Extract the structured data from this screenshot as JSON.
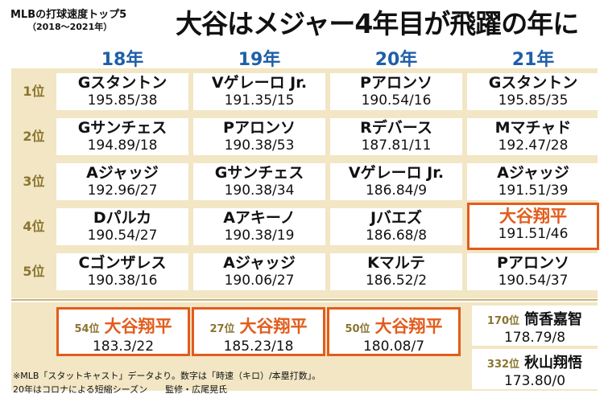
{
  "header": {
    "subtitle": "MLBの打球速度トップ5",
    "years": "（2018〜2021年）",
    "headline": "大谷はメジャー4年目が飛躍の年に"
  },
  "columns": [
    "18年",
    "19年",
    "20年",
    "21年"
  ],
  "rows": [
    {
      "rank": "1位",
      "cells": [
        {
          "name": "Gスタントン",
          "stat": "195.85/38"
        },
        {
          "name": "Vゲレーロ Jr.",
          "stat": "191.35/15"
        },
        {
          "name": "Pアロンソ",
          "stat": "190.54/16"
        },
        {
          "name": "Gスタントン",
          "stat": "195.85/35"
        }
      ]
    },
    {
      "rank": "2位",
      "cells": [
        {
          "name": "Gサンチェス",
          "stat": "194.89/18"
        },
        {
          "name": "Pアロンソ",
          "stat": "190.38/53"
        },
        {
          "name": "Rデバース",
          "stat": "187.81/11"
        },
        {
          "name": "Mマチャド",
          "stat": "192.47/28"
        }
      ]
    },
    {
      "rank": "3位",
      "cells": [
        {
          "name": "Aジャッジ",
          "stat": "192.96/27"
        },
        {
          "name": "Gサンチェス",
          "stat": "190.38/34"
        },
        {
          "name": "Vゲレーロ Jr.",
          "stat": "186.84/9"
        },
        {
          "name": "Aジャッジ",
          "stat": "191.51/39"
        }
      ]
    },
    {
      "rank": "4位",
      "cells": [
        {
          "name": "Dパルカ",
          "stat": "190.54/27"
        },
        {
          "name": "Aアキーノ",
          "stat": "190.38/19"
        },
        {
          "name": "Jバエズ",
          "stat": "186.68/8"
        },
        {
          "name": "大谷翔平",
          "stat": "191.51/46"
        }
      ]
    },
    {
      "rank": "5位",
      "cells": [
        {
          "name": "Cゴンザレス",
          "stat": "190.38/16"
        },
        {
          "name": "Aジャッジ",
          "stat": "190.06/27"
        },
        {
          "name": "Kマルテ",
          "stat": "186.52/2"
        },
        {
          "name": "Pアロンソ",
          "stat": "190.54/37"
        }
      ]
    }
  ],
  "ohtani_rows": [
    {
      "rank": "54位",
      "name": "大谷翔平",
      "stat": "183.3/22"
    },
    {
      "rank": "27位",
      "name": "大谷翔平",
      "stat": "185.23/18"
    },
    {
      "rank": "50位",
      "name": "大谷翔平",
      "stat": "180.08/7"
    }
  ],
  "japanese_21": [
    {
      "rank": "170位",
      "name": "筒香嘉智",
      "stat": "178.79/8"
    },
    {
      "rank": "332位",
      "name": "秋山翔悟",
      "stat": "173.80/0"
    }
  ],
  "notes": [
    "※MLB「スタットキャスト」データより。数字は「時速（キロ）/本塁打数」。",
    "20年はコロナによる短縮シーズン　　監修・広尾晃氏"
  ],
  "colors": {
    "accent": "#e25c1c",
    "header_blue": "#1f5fa8",
    "rank_gold": "#8a7530",
    "panel": "#f2e6c4"
  }
}
